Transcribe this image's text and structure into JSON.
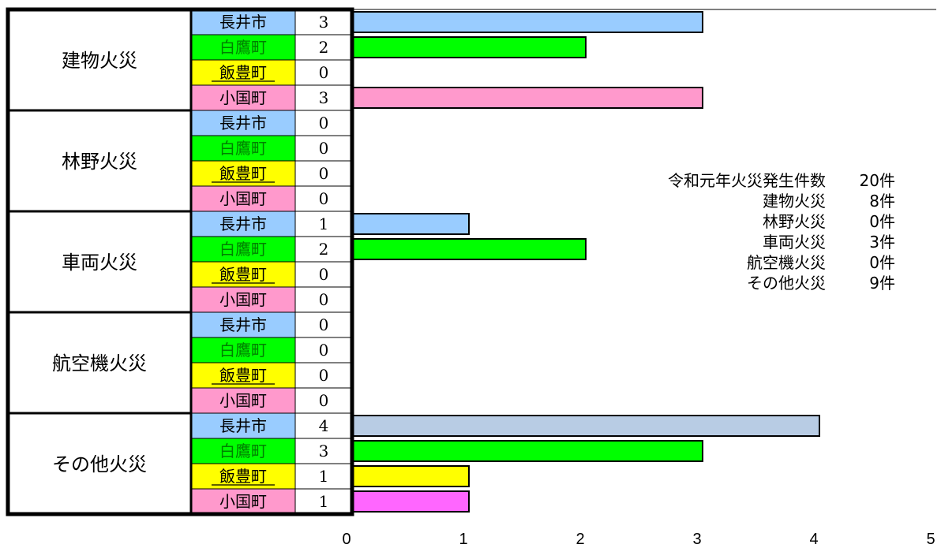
{
  "chart_data": {
    "type": "bar",
    "orientation": "horizontal",
    "xlim": [
      0,
      5
    ],
    "x_ticks": [
      "0",
      "1",
      "2",
      "3",
      "4",
      "5"
    ],
    "grid": false,
    "groups": [
      {
        "name": "建物火災",
        "rows": [
          {
            "town": "長井市",
            "value": 3
          },
          {
            "town": "白鷹町",
            "value": 2
          },
          {
            "town": "飯豊町",
            "value": 0
          },
          {
            "town": "小国町",
            "value": 3
          }
        ]
      },
      {
        "name": "林野火災",
        "rows": [
          {
            "town": "長井市",
            "value": 0
          },
          {
            "town": "白鷹町",
            "value": 0
          },
          {
            "town": "飯豊町",
            "value": 0
          },
          {
            "town": "小国町",
            "value": 0
          }
        ]
      },
      {
        "name": "車両火災",
        "rows": [
          {
            "town": "長井市",
            "value": 1
          },
          {
            "town": "白鷹町",
            "value": 2
          },
          {
            "town": "飯豊町",
            "value": 0
          },
          {
            "town": "小国町",
            "value": 0
          }
        ]
      },
      {
        "name": "航空機火災",
        "rows": [
          {
            "town": "長井市",
            "value": 0
          },
          {
            "town": "白鷹町",
            "value": 0
          },
          {
            "town": "飯豊町",
            "value": 0
          },
          {
            "town": "小国町",
            "value": 0
          }
        ]
      },
      {
        "name": "その他火災",
        "rows": [
          {
            "town": "長井市",
            "value": 4
          },
          {
            "town": "白鷹町",
            "value": 3
          },
          {
            "town": "飯豊町",
            "value": 1
          },
          {
            "town": "小国町",
            "value": 1
          }
        ]
      }
    ],
    "town_colors": {
      "長井市": "#99ccff",
      "白鷹町": "#00ff00",
      "飯豊町": "#ffff00",
      "小国町": "#ff99cc"
    },
    "town_text_colors": {
      "長井市": "#000000",
      "白鷹町": "#008000",
      "飯豊町": "#000000",
      "小国町": "#000000"
    },
    "bar_color_overrides": [
      {
        "group": 4,
        "row": 0,
        "color": "#b8cce4"
      },
      {
        "group": 4,
        "row": 3,
        "color": "#ff66ff"
      }
    ]
  },
  "summary": {
    "rows": [
      {
        "name": "令和元年火災発生件数",
        "value": "20件"
      },
      {
        "name": "建物火災",
        "value": "8件"
      },
      {
        "name": "林野火災",
        "value": "0件"
      },
      {
        "name": "車両火災",
        "value": "3件"
      },
      {
        "name": "航空機火災",
        "value": "0件"
      },
      {
        "name": "その他火災",
        "value": "9件"
      }
    ]
  }
}
